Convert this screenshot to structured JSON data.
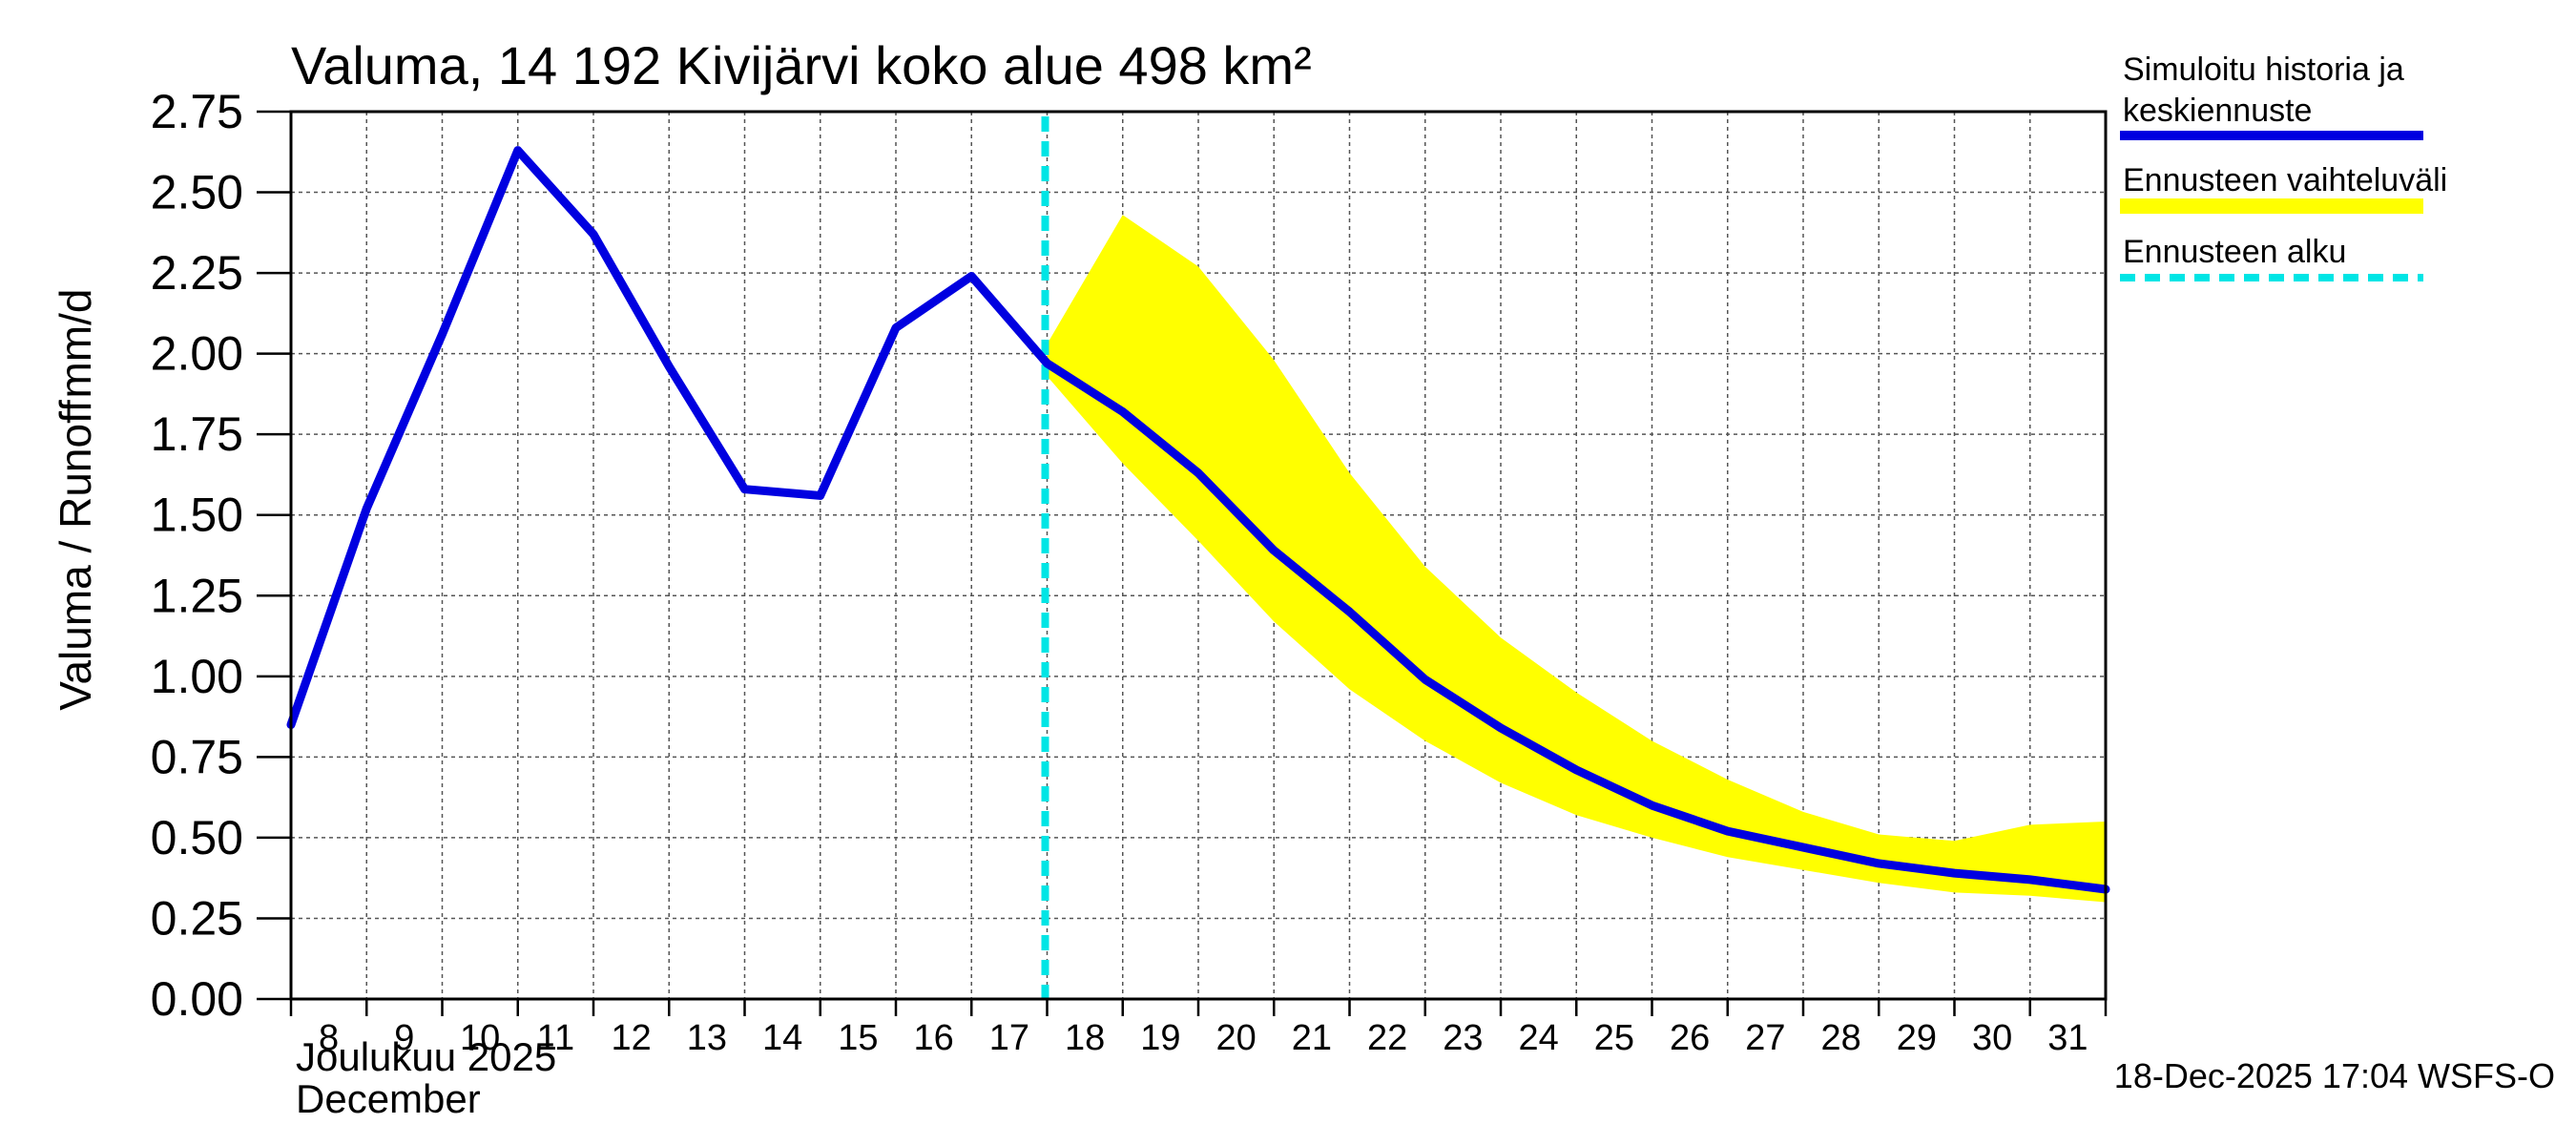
{
  "chart_data": {
    "type": "line",
    "title": "Valuma, 14 192 Kivijärvi koko alue 498 km²",
    "ylabel_fi": "Valuma / Runoff",
    "ylabel_unit": "mm/d",
    "xlabel_month_fi": "Joulukuu  2025",
    "xlabel_month_en": "December",
    "ylim": [
      0,
      2.75
    ],
    "yticks": [
      "0.00",
      "0.25",
      "0.50",
      "0.75",
      "1.00",
      "1.25",
      "1.50",
      "1.75",
      "2.00",
      "2.25",
      "2.50",
      "2.75"
    ],
    "x_day_range": [
      8,
      32
    ],
    "xticks": [
      "8",
      "9",
      "10",
      "11",
      "12",
      "13",
      "14",
      "15",
      "16",
      "17",
      "18",
      "19",
      "20",
      "21",
      "22",
      "23",
      "24",
      "25",
      "26",
      "27",
      "28",
      "29",
      "30",
      "31"
    ],
    "grid": true,
    "forecast_start_day": 18.0,
    "series": [
      {
        "name": "Simuloitu historia ja keskiennuste",
        "color": "#0000e0",
        "x": [
          8,
          9,
          10,
          11,
          12,
          13,
          14,
          15,
          16,
          17,
          18,
          19,
          20,
          21,
          22,
          23,
          24,
          25,
          26,
          27,
          28,
          29,
          30,
          31,
          32
        ],
        "values": [
          0.85,
          1.52,
          2.06,
          2.63,
          2.37,
          1.96,
          1.58,
          1.56,
          2.08,
          2.24,
          1.97,
          1.82,
          1.63,
          1.39,
          1.2,
          0.99,
          0.84,
          0.71,
          0.6,
          0.52,
          0.47,
          0.42,
          0.39,
          0.37,
          0.34
        ]
      }
    ],
    "band": {
      "name": "Ennusteen vaihteluväli",
      "color": "#ffff00",
      "x": [
        18,
        19,
        20,
        21,
        22,
        23,
        24,
        25,
        26,
        27,
        28,
        29,
        30,
        31,
        32
      ],
      "upper": [
        2.03,
        2.43,
        2.27,
        1.98,
        1.63,
        1.34,
        1.12,
        0.95,
        0.8,
        0.68,
        0.58,
        0.51,
        0.49,
        0.54,
        0.55
      ],
      "lower": [
        1.93,
        1.66,
        1.42,
        1.17,
        0.96,
        0.8,
        0.67,
        0.57,
        0.5,
        0.44,
        0.4,
        0.36,
        0.33,
        0.32,
        0.3
      ]
    },
    "legend": [
      {
        "label_line1": "Simuloitu historia ja",
        "label_line2": "keskiennuste",
        "color": "#0000e0",
        "style": "solid"
      },
      {
        "label_line1": "Ennusteen vaihteluväli",
        "label_line2": "",
        "color": "#ffff00",
        "style": "solid"
      },
      {
        "label_line1": "Ennusteen alku",
        "label_line2": "",
        "color": "#00e5e5",
        "style": "dashed"
      }
    ],
    "legend_position": "right",
    "timestamp": "18-Dec-2025 17:04 WSFS-O"
  }
}
